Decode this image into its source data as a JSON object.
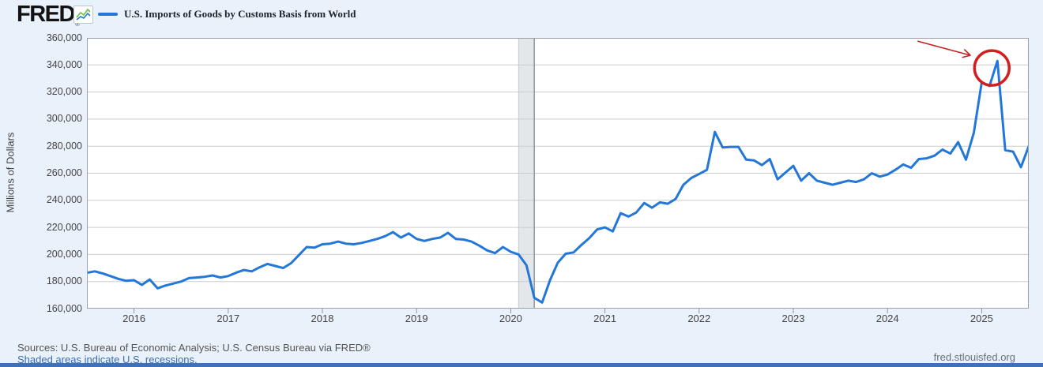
{
  "header": {
    "logo_text": "FRED",
    "registered_mark": "®",
    "legend_label": "U.S. Imports of Goods by Customs Basis from World"
  },
  "chart_data": {
    "type": "line",
    "title": "U.S. Imports of Goods by Customs Basis from World",
    "ylabel": "Millions of Dollars",
    "ylim": [
      160000,
      360000
    ],
    "y_tick_step": 20000,
    "y_tick_labels": [
      "360,000",
      "340,000",
      "320,000",
      "300,000",
      "280,000",
      "260,000",
      "240,000",
      "220,000",
      "200,000",
      "180,000",
      "160,000"
    ],
    "x_start": "2015-07",
    "x_end": "2025-07",
    "x_tick_labels": [
      "2016",
      "2017",
      "2018",
      "2019",
      "2020",
      "2021",
      "2022",
      "2023",
      "2024",
      "2025"
    ],
    "grid": true,
    "recession_band": {
      "start": "2020-02",
      "end": "2020-04"
    },
    "series": [
      {
        "name": "U.S. Imports of Goods by Customs Basis from World",
        "color": "#2277d9",
        "start": "2015-07",
        "values": [
          186500,
          187500,
          186000,
          184000,
          182000,
          180500,
          181000,
          177500,
          181500,
          175000,
          177000,
          178500,
          180000,
          182500,
          183000,
          183500,
          184500,
          183000,
          184000,
          186500,
          188500,
          187500,
          190500,
          193000,
          191500,
          190000,
          193500,
          199500,
          205500,
          205000,
          207500,
          208000,
          209500,
          208000,
          207500,
          208500,
          210000,
          211500,
          213500,
          216500,
          212500,
          215500,
          211500,
          210000,
          211500,
          212500,
          216000,
          211500,
          211000,
          209500,
          206500,
          203000,
          201000,
          205500,
          202000,
          200000,
          192000,
          168000,
          164500,
          181000,
          194000,
          200500,
          201500,
          207000,
          212000,
          218500,
          220000,
          217000,
          230500,
          228000,
          231000,
          238000,
          234500,
          238500,
          237500,
          241000,
          251500,
          256500,
          259500,
          262500,
          290500,
          279000,
          279500,
          279500,
          270000,
          269500,
          266000,
          270500,
          255500,
          260500,
          265500,
          254500,
          260000,
          254500,
          253000,
          251500,
          253000,
          254500,
          253500,
          255500,
          260000,
          257500,
          259000,
          262500,
          266500,
          264000,
          270500,
          271000,
          273000,
          277500,
          274500,
          283000,
          270000,
          290000,
          327000,
          324500,
          343000,
          277000,
          276000,
          264500,
          280000
        ]
      }
    ],
    "annotations": {
      "highlight_circle": {
        "month": "2025-03",
        "value": 343000,
        "color": "#d11f1f"
      },
      "arrow": {
        "points_to": "2025-03 peak",
        "color": "#c41f1f"
      }
    },
    "colors": {
      "plot_background": "#ffffff",
      "grid": "#cccccc",
      "plot_border": "#9aa1a8",
      "recession_band": "#e4e7ea",
      "recession_band_edge": "#8f979f"
    }
  },
  "footer": {
    "sources": "Sources: U.S. Bureau of Economic Analysis; U.S. Census Bureau via FRED®",
    "shaded_note": "Shaded areas indicate U.S. recessions.",
    "site_url": "fred.stlouisfed.org"
  }
}
